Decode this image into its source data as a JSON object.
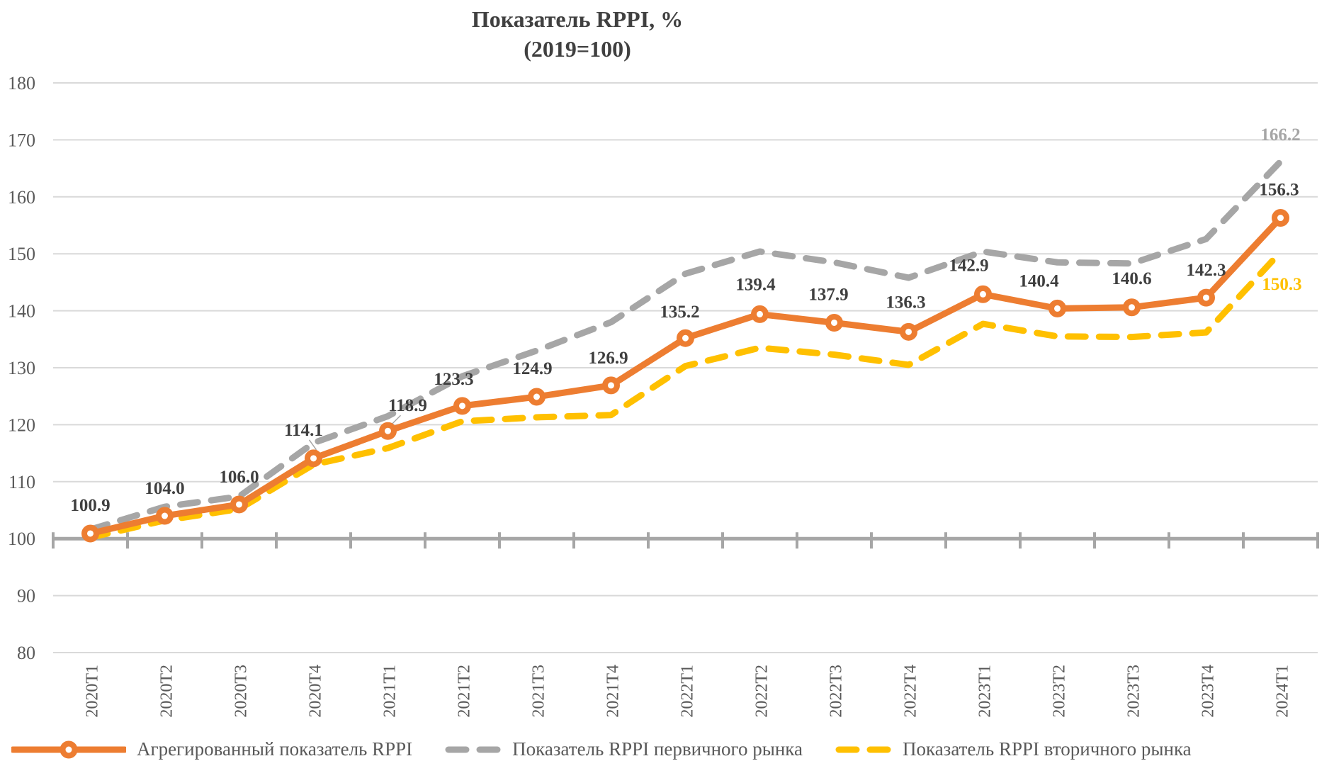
{
  "title": {
    "line1": "Показатель RPPI, %",
    "line2": "(2019=100)"
  },
  "colors": {
    "aggregate_line": "#ED7D31",
    "primary_market_line": "#A6A6A6",
    "secondary_market_line": "#FFC000",
    "gridline": "#D9D9D9",
    "axis_line": "#A6A6A6",
    "axis_text": "#595959",
    "data_label_text": "#3F3F3F",
    "title_text": "#404040"
  },
  "chart_data": {
    "type": "line",
    "title": "Показатель RPPI, % (2019=100)",
    "categories": [
      "2020Т1",
      "2020Т2",
      "2020Т3",
      "2020Т4",
      "2021Т1",
      "2021Т2",
      "2021Т3",
      "2021Т4",
      "2022Т1",
      "2022Т2",
      "2022Т3",
      "2022Т4",
      "2023Т1",
      "2023Т2",
      "2023Т3",
      "2023Т4",
      "2024Т1"
    ],
    "series": [
      {
        "name": "Агрегированный показатель RPPI",
        "color": "#ED7D31",
        "line_style": "solid",
        "marker": "circle-open",
        "values": [
          100.9,
          104.0,
          106.0,
          114.1,
          118.9,
          123.3,
          124.9,
          126.9,
          135.2,
          139.4,
          137.9,
          136.3,
          142.9,
          140.4,
          140.6,
          142.3,
          156.3
        ],
        "data_labels": [
          "100.9",
          "104.0",
          "106.0",
          "114.1",
          "118.9",
          "123.3",
          "124.9",
          "126.9",
          "135.2",
          "139.4",
          "137.9",
          "136.3",
          "142.9",
          "140.4",
          "140.6",
          "142.3",
          "156.3"
        ]
      },
      {
        "name": "Показатель RPPI первичного рынка",
        "color": "#A6A6A6",
        "line_style": "dashed",
        "marker": "none",
        "values": [
          101.6,
          105.6,
          107.4,
          116.8,
          121.5,
          128.5,
          133.0,
          138.0,
          146.5,
          150.4,
          148.5,
          145.8,
          150.4,
          148.5,
          148.3,
          152.6,
          166.2
        ],
        "end_label": "166.2"
      },
      {
        "name": "Показатель RPPI вторичного рынка",
        "color": "#FFC000",
        "line_style": "dashed",
        "marker": "none",
        "values": [
          100.2,
          103.2,
          105.2,
          113.0,
          115.9,
          120.6,
          121.3,
          121.7,
          130.3,
          133.5,
          132.3,
          130.5,
          137.7,
          135.5,
          135.4,
          136.2,
          150.3
        ],
        "end_label": "150.3"
      }
    ],
    "ylim": [
      80,
      180
    ],
    "ytick_step": 10,
    "yticks": [
      180,
      170,
      160,
      150,
      140,
      130,
      120,
      110,
      100,
      90,
      80
    ],
    "baseline_value": 100,
    "grid": "horizontal",
    "legend_position": "bottom",
    "xlabel": "",
    "ylabel": ""
  },
  "legend": {
    "items": [
      {
        "label": "Агрегированный показатель RPPI",
        "swatch": "orange-line-marker"
      },
      {
        "label": "Показатель RPPI первичного рынка",
        "swatch": "gray-dashes"
      },
      {
        "label": "Показатель RPPI вторичного рынка",
        "swatch": "yellow-dashes"
      }
    ]
  }
}
